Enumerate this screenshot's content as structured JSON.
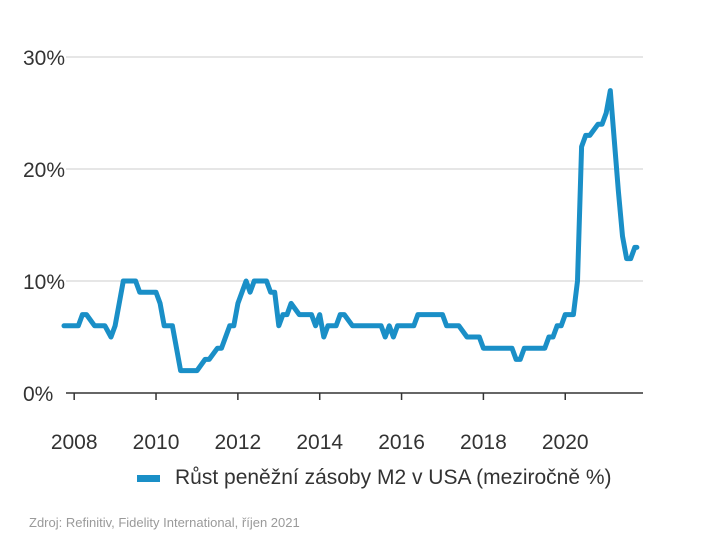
{
  "chart_data": {
    "type": "line",
    "title": "",
    "xlabel": "",
    "ylabel": "",
    "xlim": [
      2007.8,
      2021.9
    ],
    "ylim": [
      0,
      30
    ],
    "y_ticks": [
      0,
      10,
      20,
      30
    ],
    "y_tick_labels": [
      "0%",
      "10%",
      "20%",
      "30%"
    ],
    "x_ticks": [
      2008,
      2010,
      2012,
      2014,
      2016,
      2018,
      2020
    ],
    "x_tick_labels": [
      "2008",
      "2010",
      "2012",
      "2014",
      "2016",
      "2018",
      "2020"
    ],
    "grid": "horizontal",
    "legend_position": "bottom",
    "series": [
      {
        "name": "Růst peněžní zásoby M2 v USA (meziročně %)",
        "color": "#1a8fc7",
        "x": [
          2007.75,
          2008.0,
          2008.1,
          2008.2,
          2008.3,
          2008.5,
          2008.6,
          2008.75,
          2008.9,
          2009.0,
          2009.1,
          2009.2,
          2009.5,
          2009.6,
          2009.8,
          2009.9,
          2010.0,
          2010.1,
          2010.2,
          2010.4,
          2010.6,
          2010.7,
          2010.9,
          2011.0,
          2011.2,
          2011.3,
          2011.5,
          2011.6,
          2011.7,
          2011.8,
          2011.9,
          2012.0,
          2012.2,
          2012.3,
          2012.4,
          2012.5,
          2012.6,
          2012.7,
          2012.8,
          2012.9,
          2013.0,
          2013.1,
          2013.2,
          2013.3,
          2013.5,
          2013.7,
          2013.8,
          2013.9,
          2014.0,
          2014.1,
          2014.2,
          2014.4,
          2014.5,
          2014.6,
          2014.8,
          2015.0,
          2015.3,
          2015.5,
          2015.6,
          2015.7,
          2015.8,
          2015.9,
          2016.0,
          2016.3,
          2016.4,
          2016.6,
          2016.8,
          2017.0,
          2017.1,
          2017.2,
          2017.4,
          2017.6,
          2017.7,
          2017.9,
          2018.0,
          2018.4,
          2018.6,
          2018.7,
          2018.8,
          2018.9,
          2019.0,
          2019.3,
          2019.5,
          2019.6,
          2019.7,
          2019.8,
          2019.9,
          2020.0,
          2020.2,
          2020.3,
          2020.4,
          2020.5,
          2020.6,
          2020.8,
          2020.9,
          2021.0,
          2021.1,
          2021.3,
          2021.4,
          2021.5,
          2021.6,
          2021.7,
          2021.75
        ],
        "values": [
          6,
          6,
          6,
          7,
          7,
          6,
          6,
          6,
          5,
          6,
          8,
          10,
          10,
          9,
          9,
          9,
          9,
          8,
          6,
          6,
          2,
          2,
          2,
          2,
          3,
          3,
          4,
          4,
          5,
          6,
          6,
          8,
          10,
          9,
          10,
          10,
          10,
          10,
          9,
          9,
          6,
          7,
          7,
          8,
          7,
          7,
          7,
          6,
          7,
          5,
          6,
          6,
          7,
          7,
          6,
          6,
          6,
          6,
          5,
          6,
          5,
          6,
          6,
          6,
          7,
          7,
          7,
          7,
          6,
          6,
          6,
          5,
          5,
          5,
          4,
          4,
          4,
          4,
          3,
          3,
          4,
          4,
          4,
          5,
          5,
          6,
          6,
          7,
          7,
          10,
          22,
          23,
          23,
          24,
          24,
          25,
          27,
          18,
          14,
          12,
          12,
          13,
          13
        ]
      }
    ]
  },
  "legend": {
    "label": "Růst peněžní zásoby M2 v USA (meziročně %)",
    "color": "#1a8fc7"
  },
  "source": "Zdroj: Refinitiv, Fidelity International, říjen 2021"
}
